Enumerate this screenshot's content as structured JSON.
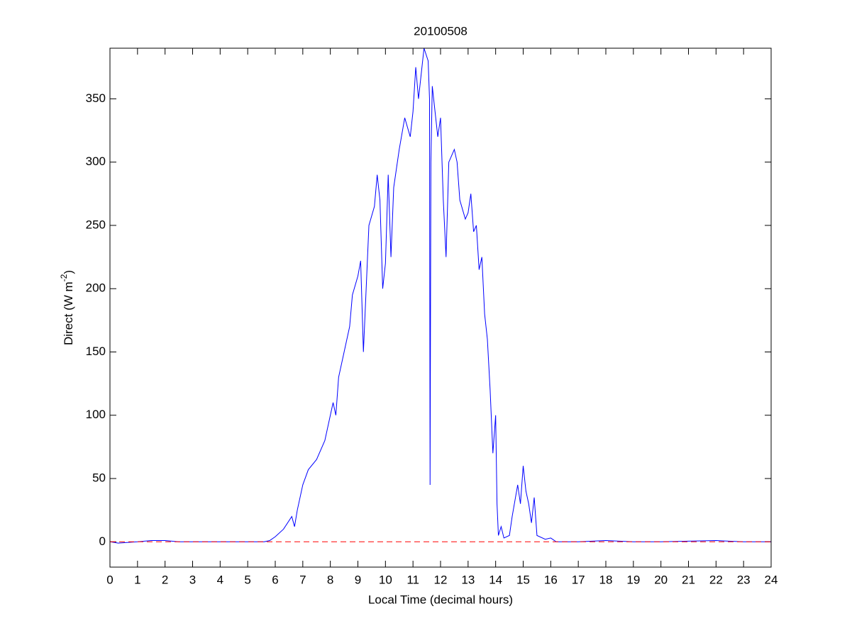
{
  "chart_data": {
    "type": "line",
    "title": "20100508",
    "xlabel": "Local Time (decimal hours)",
    "ylabel_parts": [
      "Direct (W m",
      "-2",
      ")"
    ],
    "xlim": [
      0,
      24
    ],
    "ylim": [
      -20,
      390
    ],
    "xticks": [
      0,
      1,
      2,
      3,
      4,
      5,
      6,
      7,
      8,
      9,
      10,
      11,
      12,
      13,
      14,
      15,
      16,
      17,
      18,
      19,
      20,
      21,
      22,
      23,
      24
    ],
    "yticks": [
      0,
      50,
      100,
      150,
      200,
      250,
      300,
      350
    ],
    "grid": false,
    "series": [
      {
        "color": "#0000ff",
        "line_style": "solid",
        "x": [
          0,
          0.3,
          1,
          1.5,
          2,
          2.5,
          3,
          5,
          5.6,
          5.8,
          6,
          6.3,
          6.6,
          6.7,
          6.8,
          7,
          7.2,
          7.5,
          7.8,
          8,
          8.1,
          8.2,
          8.3,
          8.5,
          8.7,
          8.8,
          9,
          9.1,
          9.2,
          9.3,
          9.4,
          9.6,
          9.7,
          9.8,
          9.9,
          10,
          10.1,
          10.2,
          10.3,
          10.5,
          10.7,
          10.9,
          11,
          11.1,
          11.2,
          11.3,
          11.4,
          11.55,
          11.6,
          11.62,
          11.65,
          11.7,
          11.8,
          11.9,
          12,
          12.1,
          12.2,
          12.3,
          12.5,
          12.6,
          12.7,
          12.9,
          13,
          13.1,
          13.2,
          13.3,
          13.4,
          13.5,
          13.6,
          13.7,
          13.8,
          13.9,
          14,
          14.05,
          14.1,
          14.2,
          14.3,
          14.5,
          14.6,
          14.8,
          14.9,
          15,
          15.1,
          15.2,
          15.3,
          15.4,
          15.5,
          15.8,
          16,
          16.2,
          17,
          18,
          19,
          20,
          22,
          23,
          24
        ],
        "values": [
          0,
          -1,
          0,
          1,
          1,
          0,
          0,
          0,
          0,
          1,
          4,
          10,
          20,
          12,
          25,
          45,
          57,
          65,
          80,
          100,
          110,
          100,
          130,
          150,
          170,
          195,
          210,
          222,
          150,
          200,
          250,
          265,
          290,
          270,
          200,
          220,
          290,
          225,
          280,
          310,
          335,
          320,
          340,
          375,
          350,
          370,
          390,
          380,
          350,
          45,
          300,
          360,
          340,
          320,
          335,
          270,
          225,
          300,
          310,
          300,
          270,
          255,
          260,
          275,
          245,
          250,
          215,
          225,
          180,
          160,
          120,
          70,
          100,
          30,
          5,
          12,
          3,
          5,
          20,
          45,
          30,
          60,
          40,
          30,
          15,
          35,
          5,
          2,
          3,
          0,
          0,
          1,
          0,
          0,
          1,
          0,
          0
        ]
      },
      {
        "color": "#ff0000",
        "line_style": "dashed",
        "x": [
          0,
          24
        ],
        "values": [
          0,
          0
        ]
      }
    ]
  }
}
